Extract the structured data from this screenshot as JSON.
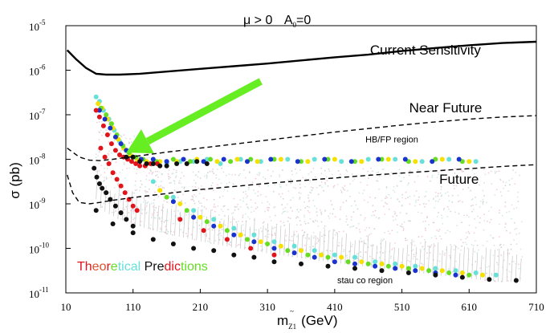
{
  "chart_data": {
    "type": "scatter",
    "title_main": "μ > 0",
    "title_a0": "A",
    "title_a0_sub": "0",
    "title_a0_value": "=0",
    "xlabel_main": "m",
    "xlabel_sub": "Z1",
    "xlabel_tilde": "~",
    "xlabel_unit": "(GeV)",
    "ylabel": "σ (pb)",
    "xlim": [
      10,
      710
    ],
    "ylim_log10": [
      -11,
      -5
    ],
    "x_ticks": [
      10,
      110,
      210,
      310,
      410,
      510,
      610,
      710
    ],
    "x_tick_labels": [
      "10",
      "110",
      "210",
      "310",
      "410",
      "510",
      "610",
      "710"
    ],
    "y_ticks": [
      {
        "exp": -5,
        "base": "10",
        "sup": "-5"
      },
      {
        "exp": -6,
        "base": "10",
        "sup": "-6"
      },
      {
        "exp": -7,
        "base": "10",
        "sup": "-7"
      },
      {
        "exp": -8,
        "base": "10",
        "sup": "-8"
      },
      {
        "exp": -9,
        "base": "10",
        "sup": "-9"
      },
      {
        "exp": -10,
        "base": "10",
        "sup": "-10"
      },
      {
        "exp": -11,
        "base": "10",
        "sup": "-11"
      }
    ],
    "curves": [
      {
        "name": "Current Sensitivity",
        "style": "solid",
        "color": "#000000",
        "x": [
          12,
          25,
          40,
          55,
          70,
          90,
          120,
          160,
          210,
          260,
          310,
          360,
          410,
          460,
          510,
          560,
          610,
          660,
          710
        ],
        "log10_sigma": [
          -5.55,
          -5.75,
          -5.95,
          -6.08,
          -6.1,
          -6.1,
          -6.08,
          -6.03,
          -5.97,
          -5.91,
          -5.85,
          -5.78,
          -5.71,
          -5.65,
          -5.57,
          -5.5,
          -5.44,
          -5.39,
          -5.36
        ]
      },
      {
        "name": "Near Future",
        "style": "dashed",
        "color": "#000000",
        "x": [
          12,
          30,
          45,
          60,
          80,
          110,
          160,
          210,
          260,
          310,
          360,
          410,
          460,
          510,
          560,
          610,
          660,
          710
        ],
        "log10_sigma": [
          -7.75,
          -7.95,
          -8.02,
          -8.03,
          -8.0,
          -7.94,
          -7.84,
          -7.75,
          -7.66,
          -7.57,
          -7.48,
          -7.39,
          -7.31,
          -7.23,
          -7.16,
          -7.1,
          -7.05,
          -7.02
        ]
      },
      {
        "name": "Future",
        "style": "dashed",
        "color": "#000000",
        "x": [
          12,
          20,
          30,
          45,
          60,
          80,
          110,
          160,
          210,
          260,
          310,
          360,
          410,
          460,
          510,
          560,
          610,
          660,
          710
        ],
        "log10_sigma": [
          -8.35,
          -8.75,
          -8.97,
          -9.0,
          -8.97,
          -8.92,
          -8.86,
          -8.77,
          -8.68,
          -8.61,
          -8.54,
          -8.48,
          -8.42,
          -8.36,
          -8.31,
          -8.26,
          -8.21,
          -8.16,
          -8.12
        ]
      }
    ],
    "series": [
      {
        "name": "hb-fp-cyan",
        "color": "#66e0d8",
        "x": [
          55,
          60,
          66,
          74,
          82,
          90,
          100,
          110,
          120,
          140,
          160,
          180,
          200,
          220,
          240,
          270,
          300,
          340,
          380,
          420,
          460,
          500,
          540,
          580,
          620
        ],
        "log10_sigma": [
          -6.6,
          -6.7,
          -6.9,
          -7.1,
          -7.35,
          -7.6,
          -7.8,
          -7.95,
          -8.0,
          -8.1,
          -8.1,
          -8.05,
          -8.05,
          -8.0,
          -8.1,
          -8.0,
          -8.05,
          -8.0,
          -8.0,
          -8.05,
          -8.0,
          -8.0,
          -8.05,
          -8.0,
          -8.05
        ]
      },
      {
        "name": "hb-fp-yellow",
        "color": "#f5e000",
        "x": [
          58,
          64,
          72,
          80,
          88,
          96,
          106,
          116,
          130,
          150,
          175,
          205,
          235,
          265,
          295,
          330,
          370,
          410,
          450,
          490,
          530,
          570,
          610
        ],
        "log10_sigma": [
          -6.75,
          -6.85,
          -7.1,
          -7.3,
          -7.55,
          -7.75,
          -7.9,
          -8.0,
          -8.05,
          -8.05,
          -8.05,
          -8.0,
          -8.05,
          -8.0,
          -8.05,
          -8.0,
          -8.05,
          -8.0,
          -8.05,
          -8.0,
          -8.05,
          -8.0,
          -8.05
        ]
      },
      {
        "name": "hb-fp-green",
        "color": "#66dd22",
        "x": [
          62,
          70,
          78,
          86,
          95,
          104,
          114,
          125,
          145,
          170,
          195,
          225,
          255,
          285,
          320,
          360,
          400,
          440,
          480,
          520,
          560,
          600
        ],
        "log10_sigma": [
          -6.85,
          -7.0,
          -7.2,
          -7.45,
          -7.7,
          -7.85,
          -7.95,
          -8.0,
          -8.05,
          -8.0,
          -8.05,
          -8.0,
          -8.05,
          -8.0,
          -8.0,
          -8.05,
          -8.0,
          -8.05,
          -8.0,
          -8.05,
          -8.0,
          -8.05
        ]
      },
      {
        "name": "hb-fp-blue",
        "color": "#1a33cc",
        "x": [
          60,
          68,
          76,
          84,
          92,
          100,
          110,
          122,
          140,
          160,
          185,
          215,
          245,
          280,
          315,
          355,
          395,
          435,
          475,
          515,
          555,
          595
        ],
        "log10_sigma": [
          -6.9,
          -7.1,
          -7.3,
          -7.5,
          -7.65,
          -7.8,
          -7.95,
          -8.0,
          -8.0,
          -8.05,
          -8.0,
          -8.05,
          -8.0,
          -8.05,
          -8.0,
          -8.05,
          -8.0,
          -8.05,
          -8.0,
          -8.0,
          -8.05,
          -8.0
        ]
      },
      {
        "name": "hb-fp-red",
        "color": "#e0141a",
        "x": [
          55,
          60,
          66,
          72,
          78,
          84,
          90,
          96,
          102,
          108,
          114,
          120,
          128,
          136,
          146
        ],
        "log10_sigma": [
          -6.9,
          -7.05,
          -7.25,
          -7.45,
          -7.65,
          -7.8,
          -7.9,
          -7.95,
          -8.0,
          -8.05,
          -8.1,
          -8.15,
          -8.15,
          -8.1,
          -8.1
        ]
      },
      {
        "name": "hb-fp-black",
        "color": "#111111",
        "x": [
          100,
          110,
          120,
          130,
          140,
          150,
          160,
          175,
          190,
          205,
          220
        ],
        "log10_sigma": [
          -7.95,
          -7.95,
          -8.05,
          -8.1,
          -8.1,
          -8.15,
          -8.15,
          -8.1,
          -8.1,
          -8.05,
          -8.1
        ]
      },
      {
        "name": "red-diagonal",
        "color": "#e0141a",
        "x": [
          62,
          68,
          74,
          80,
          86,
          92,
          98,
          104,
          110,
          116
        ],
        "log10_sigma": [
          -7.75,
          -7.95,
          -8.1,
          -8.3,
          -8.45,
          -8.6,
          -8.75,
          -8.9,
          -9.05,
          -9.15
        ]
      },
      {
        "name": "black-diagonal",
        "color": "#111111",
        "x": [
          52,
          56,
          60,
          64,
          70,
          76,
          84,
          92,
          100,
          110
        ],
        "log10_sigma": [
          -8.2,
          -8.4,
          -8.55,
          -8.65,
          -8.75,
          -8.9,
          -9.05,
          -9.2,
          -9.35,
          -9.5
        ]
      },
      {
        "name": "stau-cyan",
        "color": "#66e0d8",
        "x": [
          140,
          170,
          200,
          230,
          260,
          290,
          320,
          350,
          380,
          410,
          440,
          470,
          500,
          530,
          560,
          590,
          620,
          650
        ],
        "log10_sigma": [
          -8.5,
          -8.85,
          -9.15,
          -9.35,
          -9.55,
          -9.7,
          -9.85,
          -9.95,
          -10.05,
          -10.15,
          -10.2,
          -10.3,
          -10.35,
          -10.4,
          -10.45,
          -10.5,
          -10.55,
          -10.6
        ]
      },
      {
        "name": "stau-yellow",
        "color": "#f5e000",
        "x": [
          150,
          180,
          210,
          240,
          270,
          300,
          330,
          360,
          390,
          420,
          450,
          480,
          510,
          540,
          570,
          600,
          630
        ],
        "log10_sigma": [
          -8.7,
          -9.0,
          -9.3,
          -9.5,
          -9.7,
          -9.85,
          -9.95,
          -10.05,
          -10.15,
          -10.2,
          -10.3,
          -10.35,
          -10.4,
          -10.45,
          -10.5,
          -10.55,
          -10.6
        ]
      },
      {
        "name": "stau-green",
        "color": "#66dd22",
        "x": [
          160,
          190,
          220,
          250,
          280,
          310,
          340,
          370,
          400,
          430,
          460,
          490,
          520,
          550,
          580,
          610
        ],
        "log10_sigma": [
          -8.85,
          -9.15,
          -9.4,
          -9.6,
          -9.8,
          -9.9,
          -10.05,
          -10.15,
          -10.2,
          -10.3,
          -10.35,
          -10.4,
          -10.45,
          -10.5,
          -10.55,
          -10.6
        ]
      },
      {
        "name": "stau-blue",
        "color": "#1a33cc",
        "x": [
          170,
          200,
          230,
          260,
          290,
          320,
          350,
          380,
          410,
          440,
          470,
          500,
          530,
          560,
          590
        ],
        "log10_sigma": [
          -8.95,
          -9.3,
          -9.5,
          -9.7,
          -9.85,
          -10.0,
          -10.1,
          -10.2,
          -10.3,
          -10.35,
          -10.4,
          -10.45,
          -10.5,
          -10.55,
          -10.6
        ]
      },
      {
        "name": "stau-red",
        "color": "#e0141a",
        "x": [
          180,
          215,
          250,
          285,
          320
        ],
        "log10_sigma": [
          -9.35,
          -9.6,
          -9.8,
          -10.0,
          -10.15
        ]
      },
      {
        "name": "stau-black",
        "color": "#111111",
        "x": [
          55,
          80,
          110,
          140,
          170,
          200,
          230,
          260,
          290,
          320,
          360,
          400,
          440,
          480,
          520,
          560,
          600,
          640,
          680
        ],
        "log10_sigma": [
          -9.15,
          -9.45,
          -9.65,
          -9.8,
          -9.9,
          -10.0,
          -10.05,
          -10.15,
          -10.2,
          -10.3,
          -10.35,
          -10.4,
          -10.45,
          -10.5,
          -10.55,
          -10.6,
          -10.65,
          -10.7,
          -10.72
        ]
      }
    ],
    "annotations": [
      {
        "key": "current",
        "text": "Current Sensitivity",
        "x": 545,
        "log10_sigma": -5.65,
        "size": "big"
      },
      {
        "key": "near",
        "text": "Near Future",
        "x": 575,
        "log10_sigma": -6.95,
        "size": "big"
      },
      {
        "key": "future",
        "text": "Future",
        "x": 595,
        "log10_sigma": -8.55,
        "size": "big"
      },
      {
        "key": "hbfp",
        "text": "HB/FP region",
        "x": 495,
        "log10_sigma": -7.62,
        "size": "small"
      },
      {
        "key": "stau",
        "text": "stau co region",
        "x": 455,
        "log10_sigma": -10.78,
        "size": "small"
      }
    ],
    "arrow": {
      "color": "#66ee22",
      "from": {
        "x": 300,
        "log10_sigma": -6.25
      },
      "to": {
        "x": 100,
        "log10_sigma": -7.85
      }
    },
    "legend_parts": [
      {
        "text": "Th",
        "color": "#e0141a"
      },
      {
        "text": "eo",
        "color": "#e05030"
      },
      {
        "text": "r",
        "color": "#e0141a"
      },
      {
        "text": "e",
        "color": "#66dd22"
      },
      {
        "text": "tic",
        "color": "#66e0d8"
      },
      {
        "text": "al ",
        "color": "#66e0d8"
      },
      {
        "text": "Pre",
        "color": "#111111"
      },
      {
        "text": "dic",
        "color": "#e0141a"
      },
      {
        "text": "t",
        "color": "#66dd22"
      },
      {
        "text": "ions",
        "color": "#66dd22"
      }
    ]
  }
}
